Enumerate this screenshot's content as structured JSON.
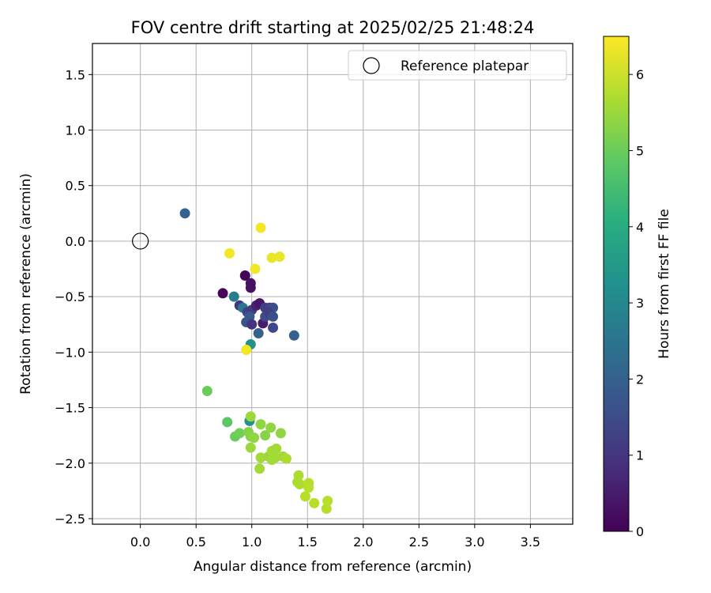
{
  "chart_data": {
    "type": "scatter",
    "title": "FOV centre drift starting at 2025/02/25 21:48:24",
    "xlabel": "Angular distance from reference (arcmin)",
    "ylabel": "Rotation from reference (arcmin)",
    "xlim": [
      -0.43,
      3.88
    ],
    "ylim": [
      -2.55,
      1.78
    ],
    "xticks": [
      0.0,
      0.5,
      1.0,
      1.5,
      2.0,
      2.5,
      3.0,
      3.5
    ],
    "xtick_labels": [
      "0.0",
      "0.5",
      "1.0",
      "1.5",
      "2.0",
      "2.5",
      "3.0",
      "3.5"
    ],
    "yticks": [
      1.5,
      1.0,
      0.5,
      0.0,
      -0.5,
      -1.0,
      -1.5,
      -2.0,
      -2.5
    ],
    "ytick_labels": [
      "1.5",
      "1.0",
      "0.5",
      "0.0",
      "−0.5",
      "−1.0",
      "−1.5",
      "−2.0",
      "−2.5"
    ],
    "grid": true,
    "legend": {
      "label": "Reference platepar",
      "position": "top-right"
    },
    "reference_point": {
      "x": 0.0,
      "y": 0.0
    },
    "colorbar": {
      "label": "Hours from first FF file",
      "colormap": "viridis",
      "range": [
        0,
        6.5
      ],
      "ticks": [
        0,
        1,
        2,
        3,
        4,
        5,
        6
      ],
      "tick_labels": [
        "0",
        "1",
        "2",
        "3",
        "4",
        "5",
        "6"
      ]
    },
    "series": [
      {
        "points": [
          {
            "x": 0.4,
            "y": 0.25,
            "c": 2.0
          },
          {
            "x": 0.74,
            "y": -0.47,
            "c": 0.1
          },
          {
            "x": 0.94,
            "y": -0.31,
            "c": 0.1
          },
          {
            "x": 0.99,
            "y": -0.38,
            "c": 0.3
          },
          {
            "x": 0.99,
            "y": -0.42,
            "c": 0.3
          },
          {
            "x": 0.84,
            "y": -0.5,
            "c": 2.7
          },
          {
            "x": 0.89,
            "y": -0.58,
            "c": 1.0
          },
          {
            "x": 0.92,
            "y": -0.6,
            "c": 2.6
          },
          {
            "x": 0.96,
            "y": -0.64,
            "c": 1.3
          },
          {
            "x": 1.0,
            "y": -0.62,
            "c": 1.1
          },
          {
            "x": 1.04,
            "y": -0.58,
            "c": 0.6
          },
          {
            "x": 1.07,
            "y": -0.56,
            "c": 0.4
          },
          {
            "x": 1.12,
            "y": -0.6,
            "c": 1.2
          },
          {
            "x": 1.16,
            "y": -0.6,
            "c": 1.3
          },
          {
            "x": 1.19,
            "y": -0.6,
            "c": 1.6
          },
          {
            "x": 0.95,
            "y": -0.73,
            "c": 1.7
          },
          {
            "x": 0.98,
            "y": -0.68,
            "c": 1.8
          },
          {
            "x": 1.0,
            "y": -0.75,
            "c": 1.0
          },
          {
            "x": 1.1,
            "y": -0.74,
            "c": 0.5
          },
          {
            "x": 1.12,
            "y": -0.68,
            "c": 1.5
          },
          {
            "x": 1.15,
            "y": -0.64,
            "c": 1.2
          },
          {
            "x": 1.19,
            "y": -0.68,
            "c": 1.6
          },
          {
            "x": 1.19,
            "y": -0.78,
            "c": 1.4
          },
          {
            "x": 1.06,
            "y": -0.83,
            "c": 2.0
          },
          {
            "x": 1.38,
            "y": -0.85,
            "c": 2.0
          },
          {
            "x": 0.99,
            "y": -0.93,
            "c": 3.3
          },
          {
            "x": 0.95,
            "y": -0.98,
            "c": 6.4
          },
          {
            "x": 0.8,
            "y": -0.11,
            "c": 6.4
          },
          {
            "x": 1.03,
            "y": -0.25,
            "c": 6.4
          },
          {
            "x": 1.08,
            "y": 0.12,
            "c": 6.4
          },
          {
            "x": 1.18,
            "y": -0.15,
            "c": 6.3
          },
          {
            "x": 1.25,
            "y": -0.14,
            "c": 6.3
          },
          {
            "x": 0.6,
            "y": -1.35,
            "c": 5.0
          },
          {
            "x": 0.78,
            "y": -1.63,
            "c": 4.8
          },
          {
            "x": 0.85,
            "y": -1.76,
            "c": 5.0
          },
          {
            "x": 0.89,
            "y": -1.73,
            "c": 5.1
          },
          {
            "x": 0.98,
            "y": -1.62,
            "c": 3.3
          },
          {
            "x": 0.99,
            "y": -1.58,
            "c": 5.5
          },
          {
            "x": 0.97,
            "y": -1.72,
            "c": 5.3
          },
          {
            "x": 0.99,
            "y": -1.76,
            "c": 5.3
          },
          {
            "x": 1.02,
            "y": -1.77,
            "c": 5.4
          },
          {
            "x": 0.99,
            "y": -1.86,
            "c": 5.5
          },
          {
            "x": 1.08,
            "y": -1.65,
            "c": 5.4
          },
          {
            "x": 1.12,
            "y": -1.75,
            "c": 5.3
          },
          {
            "x": 1.17,
            "y": -1.68,
            "c": 5.4
          },
          {
            "x": 1.26,
            "y": -1.73,
            "c": 5.4
          },
          {
            "x": 1.08,
            "y": -1.95,
            "c": 5.6
          },
          {
            "x": 1.07,
            "y": -2.05,
            "c": 5.6
          },
          {
            "x": 1.15,
            "y": -1.94,
            "c": 5.5
          },
          {
            "x": 1.18,
            "y": -1.89,
            "c": 5.6
          },
          {
            "x": 1.18,
            "y": -1.97,
            "c": 5.6
          },
          {
            "x": 1.22,
            "y": -1.87,
            "c": 5.6
          },
          {
            "x": 1.21,
            "y": -1.95,
            "c": 5.6
          },
          {
            "x": 1.28,
            "y": -1.94,
            "c": 5.6
          },
          {
            "x": 1.31,
            "y": -1.96,
            "c": 5.7
          },
          {
            "x": 1.42,
            "y": -2.11,
            "c": 5.7
          },
          {
            "x": 1.41,
            "y": -2.17,
            "c": 5.7
          },
          {
            "x": 1.43,
            "y": -2.19,
            "c": 5.7
          },
          {
            "x": 1.51,
            "y": -2.18,
            "c": 5.8
          },
          {
            "x": 1.51,
            "y": -2.22,
            "c": 5.8
          },
          {
            "x": 1.48,
            "y": -2.3,
            "c": 5.8
          },
          {
            "x": 1.56,
            "y": -2.36,
            "c": 5.8
          },
          {
            "x": 1.68,
            "y": -2.34,
            "c": 5.8
          },
          {
            "x": 1.67,
            "y": -2.41,
            "c": 5.8
          }
        ]
      }
    ]
  }
}
